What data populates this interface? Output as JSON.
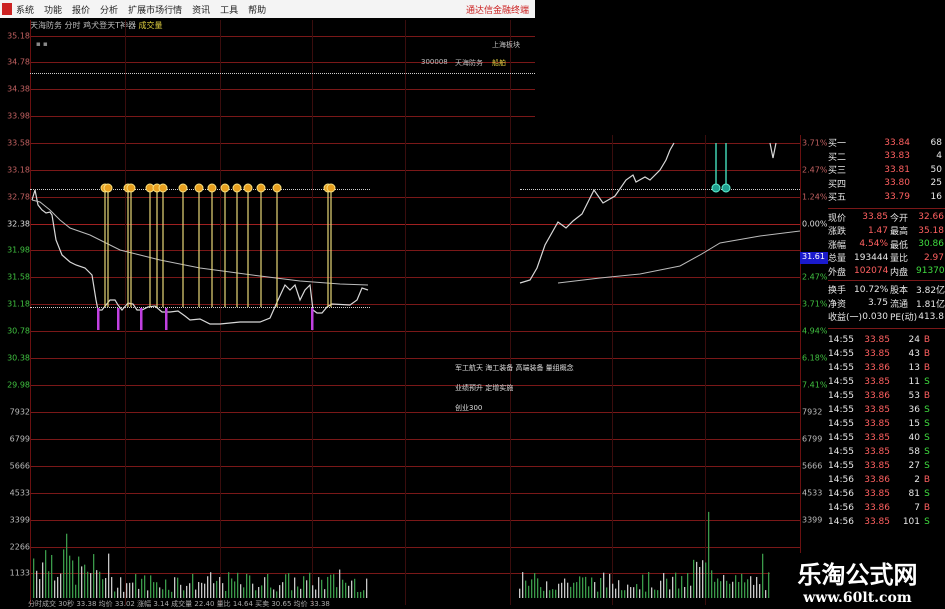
{
  "menubar": {
    "items": [
      "系统",
      "功能",
      "报价",
      "分析",
      "扩展市场行情",
      "资讯",
      "工具",
      "帮助"
    ],
    "brand": "通达信金融终端"
  },
  "chart": {
    "header": [
      "天海防务",
      "分时",
      "鸡犬登天T神器",
      "成交量"
    ],
    "price_axis_left": [
      "35.18",
      "34.78",
      "34.38",
      "33.98",
      "33.58",
      "33.18",
      "32.78",
      "32.38",
      "31.98",
      "31.58",
      "31.18",
      "30.78",
      "30.38",
      "29.98"
    ],
    "volume_axis": [
      "7932",
      "6799",
      "5666",
      "4533",
      "3399",
      "2266",
      "1133"
    ],
    "pct_axis_right": [
      "3.71%",
      "2.47%",
      "1.24%",
      "0.00%",
      "2.47%",
      "3.71%",
      "4.94%",
      "6.18%",
      "7.41%"
    ],
    "current_price_tag": "31.61",
    "info_code": "300008",
    "info_name": "天海防务",
    "info_market": "上海板块",
    "info_sector": "船舶",
    "concepts": [
      "军工航天 海工装备 高端装备 量组概念",
      "业绩预升 定增实施",
      "创业300"
    ],
    "status_bar": "分时成交 30秒 33.38  均价 33.02  涨幅 3.14  成交量 22.40  量比 14.64  买卖 30.65  均价 33.38",
    "colors": {
      "grid": "#7a1818",
      "price_line": "#d8d8d8",
      "buy_signal": "#e8d878",
      "sell_signal": "#40d0b0",
      "volume_up": "#c8c8c8",
      "volume_down": "#3a9a4a"
    }
  },
  "quote": {
    "bids": [
      {
        "label": "买一",
        "price": "33.84",
        "vol": "68"
      },
      {
        "label": "买二",
        "price": "33.83",
        "vol": "4"
      },
      {
        "label": "买三",
        "price": "33.81",
        "vol": "50"
      },
      {
        "label": "买四",
        "price": "33.80",
        "vol": "25"
      },
      {
        "label": "买五",
        "price": "33.79",
        "vol": "16"
      }
    ],
    "stats": [
      {
        "l1": "现价",
        "v1": "33.85",
        "l2": "今开",
        "v2": "32.66",
        "c2": "red"
      },
      {
        "l1": "涨跌",
        "v1": "1.47",
        "l2": "最高",
        "v2": "35.18",
        "c2": "red"
      },
      {
        "l1": "涨幅",
        "v1": "4.54%",
        "l2": "最低",
        "v2": "30.86",
        "c2": "grn"
      },
      {
        "l1": "总量",
        "v1": "193444",
        "l2": "量比",
        "v2": "2.97",
        "c2": "red"
      },
      {
        "l1": "外盘",
        "v1": "102074",
        "l2": "内盘",
        "v2": "91370",
        "c2": "grn"
      },
      {
        "l1": "换手",
        "v1": "10.72%",
        "l2": "股本",
        "v2": "3.82亿",
        "c2": "wht"
      },
      {
        "l1": "净资",
        "v1": "3.75",
        "l2": "流通",
        "v2": "1.81亿",
        "c2": "wht"
      },
      {
        "l1": "收益(一)",
        "v1": "0.030",
        "l2": "PE(动)",
        "v2": "413.8",
        "c2": "wht"
      }
    ],
    "ticks": [
      {
        "t": "14:55",
        "p": "33.85",
        "v": "24",
        "s": "B"
      },
      {
        "t": "14:55",
        "p": "33.85",
        "v": "43",
        "s": "B"
      },
      {
        "t": "14:55",
        "p": "33.86",
        "v": "13",
        "s": "B"
      },
      {
        "t": "14:55",
        "p": "33.85",
        "v": "11",
        "s": "S"
      },
      {
        "t": "14:55",
        "p": "33.86",
        "v": "53",
        "s": "B"
      },
      {
        "t": "14:55",
        "p": "33.85",
        "v": "36",
        "s": "S"
      },
      {
        "t": "14:55",
        "p": "33.85",
        "v": "15",
        "s": "S"
      },
      {
        "t": "14:55",
        "p": "33.85",
        "v": "40",
        "s": "S"
      },
      {
        "t": "14:55",
        "p": "33.85",
        "v": "58",
        "s": "S"
      },
      {
        "t": "14:55",
        "p": "33.85",
        "v": "27",
        "s": "S"
      },
      {
        "t": "14:56",
        "p": "33.86",
        "v": "2",
        "s": "B"
      },
      {
        "t": "14:56",
        "p": "33.85",
        "v": "81",
        "s": "S"
      },
      {
        "t": "14:56",
        "p": "33.86",
        "v": "7",
        "s": "B"
      },
      {
        "t": "14:56",
        "p": "33.85",
        "v": "101",
        "s": "S"
      }
    ]
  },
  "watermark": {
    "title": "乐淘公式网",
    "url": "www.60lt.com"
  }
}
